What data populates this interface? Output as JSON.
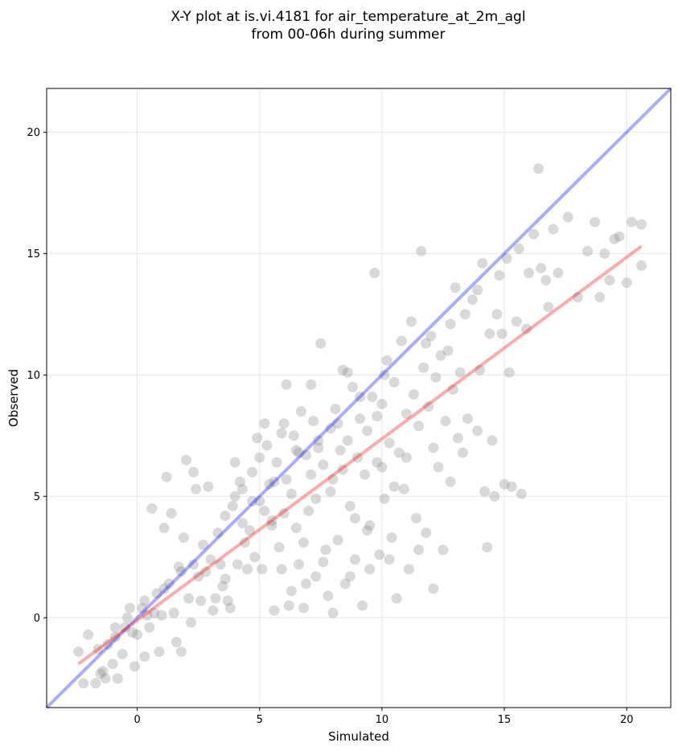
{
  "chart_data": {
    "type": "scatter",
    "title_lines": [
      "X-Y plot at is.vi.4181 for air_temperature_at_2m_agl",
      "from 00-06h during summer"
    ],
    "xlabel": "Simulated",
    "ylabel": "Observed",
    "xlim": [
      -3.7,
      21.8
    ],
    "ylim": [
      -3.7,
      21.8
    ],
    "xticks": [
      0,
      5,
      10,
      15,
      20
    ],
    "yticks": [
      0,
      5,
      10,
      15,
      20
    ],
    "grid": true,
    "colors": {
      "points": "#808080",
      "identity_line": "#0000ff",
      "fit_line": "#ff0000"
    },
    "lines": [
      {
        "kind": "identity",
        "x": [
          -3.7,
          21.8
        ],
        "y": [
          -3.7,
          21.8
        ]
      },
      {
        "kind": "fit",
        "x": [
          -2.4,
          20.6
        ],
        "y": [
          -1.9,
          15.3
        ]
      }
    ],
    "points": [
      [
        -2.4,
        -1.4
      ],
      [
        -2.2,
        -2.7
      ],
      [
        -2.0,
        -0.7
      ],
      [
        -1.7,
        -2.7
      ],
      [
        -1.5,
        -2.3
      ],
      [
        -1.4,
        -2.2
      ],
      [
        -1.3,
        -2.5
      ],
      [
        -1.2,
        -1.1
      ],
      [
        -1.0,
        -1.9
      ],
      [
        -0.9,
        -0.8
      ],
      [
        -0.8,
        -2.5
      ],
      [
        -0.6,
        -1.5
      ],
      [
        -0.5,
        -0.4
      ],
      [
        -0.4,
        0.0
      ],
      [
        -0.3,
        0.4
      ],
      [
        -0.2,
        -0.6
      ],
      [
        -0.1,
        -2.0
      ],
      [
        0.0,
        -0.7
      ],
      [
        0.2,
        0.4
      ],
      [
        0.3,
        -1.6
      ],
      [
        0.4,
        0.1
      ],
      [
        0.5,
        -0.4
      ],
      [
        0.6,
        4.5
      ],
      [
        0.7,
        0.2
      ],
      [
        0.8,
        1.0
      ],
      [
        0.9,
        -1.4
      ],
      [
        1.0,
        0.1
      ],
      [
        1.1,
        3.7
      ],
      [
        1.2,
        5.8
      ],
      [
        1.3,
        1.4
      ],
      [
        1.4,
        4.3
      ],
      [
        1.5,
        0.2
      ],
      [
        1.6,
        -1.0
      ],
      [
        1.7,
        2.1
      ],
      [
        1.8,
        -1.4
      ],
      [
        1.9,
        3.3
      ],
      [
        2.0,
        6.5
      ],
      [
        2.1,
        0.8
      ],
      [
        2.2,
        -0.2
      ],
      [
        2.3,
        6.0
      ],
      [
        2.4,
        5.3
      ],
      [
        2.5,
        1.7
      ],
      [
        2.6,
        0.7
      ],
      [
        2.8,
        1.9
      ],
      [
        2.9,
        5.4
      ],
      [
        3.0,
        2.4
      ],
      [
        3.1,
        0.3
      ],
      [
        3.2,
        0.8
      ],
      [
        3.3,
        3.5
      ],
      [
        3.5,
        1.3
      ],
      [
        3.6,
        1.6
      ],
      [
        3.7,
        0.7
      ],
      [
        3.8,
        0.4
      ],
      [
        3.9,
        4.6
      ],
      [
        4.0,
        6.4
      ],
      [
        4.0,
        5.0
      ],
      [
        4.1,
        2.2
      ],
      [
        4.2,
        5.6
      ],
      [
        4.3,
        5.3
      ],
      [
        4.4,
        3.1
      ],
      [
        4.5,
        2.0
      ],
      [
        4.6,
        3.6
      ],
      [
        4.7,
        6.0
      ],
      [
        4.8,
        2.5
      ],
      [
        4.9,
        7.4
      ],
      [
        5.0,
        4.8
      ],
      [
        5.0,
        6.6
      ],
      [
        5.1,
        2.0
      ],
      [
        5.2,
        4.4
      ],
      [
        5.3,
        7.1
      ],
      [
        5.4,
        5.5
      ],
      [
        5.5,
        3.8
      ],
      [
        5.6,
        0.3
      ],
      [
        5.7,
        6.4
      ],
      [
        5.8,
        2.9
      ],
      [
        5.9,
        7.6
      ],
      [
        6.0,
        8.0
      ],
      [
        6.0,
        4.3
      ],
      [
        6.1,
        9.6
      ],
      [
        6.2,
        0.5
      ],
      [
        6.3,
        5.1
      ],
      [
        6.4,
        7.5
      ],
      [
        6.5,
        3.7
      ],
      [
        6.6,
        2.2
      ],
      [
        6.7,
        8.5
      ],
      [
        6.8,
        0.4
      ],
      [
        6.9,
        6.7
      ],
      [
        7.0,
        4.4
      ],
      [
        7.1,
        5.9
      ],
      [
        7.2,
        8.1
      ],
      [
        7.3,
        1.7
      ],
      [
        7.4,
        7.0
      ],
      [
        7.5,
        11.3
      ],
      [
        7.6,
        6.3
      ],
      [
        7.7,
        2.8
      ],
      [
        7.8,
        0.9
      ],
      [
        7.9,
        7.8
      ],
      [
        8.0,
        5.7
      ],
      [
        8.1,
        8.6
      ],
      [
        8.2,
        3.2
      ],
      [
        8.3,
        6.9
      ],
      [
        8.4,
        10.2
      ],
      [
        8.5,
        1.4
      ],
      [
        8.6,
        7.3
      ],
      [
        8.7,
        4.6
      ],
      [
        8.8,
        9.5
      ],
      [
        8.9,
        2.4
      ],
      [
        9.0,
        6.6
      ],
      [
        9.1,
        8.2
      ],
      [
        9.2,
        0.5
      ],
      [
        9.3,
        5.9
      ],
      [
        9.4,
        7.7
      ],
      [
        9.5,
        3.8
      ],
      [
        9.6,
        9.1
      ],
      [
        9.7,
        14.2
      ],
      [
        9.8,
        6.4
      ],
      [
        9.9,
        2.6
      ],
      [
        10.0,
        8.8
      ],
      [
        10.1,
        4.9
      ],
      [
        10.2,
        10.6
      ],
      [
        10.3,
        7.2
      ],
      [
        10.4,
        3.3
      ],
      [
        10.5,
        9.7
      ],
      [
        10.6,
        0.8
      ],
      [
        10.7,
        6.8
      ],
      [
        10.8,
        11.4
      ],
      [
        10.9,
        5.3
      ],
      [
        11.0,
        8.4
      ],
      [
        11.1,
        2.0
      ],
      [
        11.2,
        12.2
      ],
      [
        11.3,
        9.2
      ],
      [
        11.4,
        4.1
      ],
      [
        11.5,
        7.9
      ],
      [
        11.6,
        15.1
      ],
      [
        11.7,
        10.3
      ],
      [
        11.8,
        3.5
      ],
      [
        11.9,
        8.7
      ],
      [
        12.0,
        11.6
      ],
      [
        12.1,
        1.2
      ],
      [
        12.2,
        9.9
      ],
      [
        12.3,
        6.2
      ],
      [
        12.4,
        10.8
      ],
      [
        12.5,
        2.8
      ],
      [
        12.6,
        8.1
      ],
      [
        12.7,
        11.0
      ],
      [
        12.8,
        5.6
      ],
      [
        12.9,
        9.4
      ],
      [
        13.0,
        13.6
      ],
      [
        13.1,
        7.4
      ],
      [
        13.2,
        10.1
      ],
      [
        13.4,
        12.5
      ],
      [
        13.5,
        8.2
      ],
      [
        13.7,
        13.1
      ],
      [
        13.9,
        7.7
      ],
      [
        14.0,
        10.2
      ],
      [
        14.1,
        14.6
      ],
      [
        14.2,
        5.2
      ],
      [
        14.3,
        2.9
      ],
      [
        14.4,
        11.7
      ],
      [
        14.5,
        7.3
      ],
      [
        14.6,
        5.0
      ],
      [
        14.7,
        12.5
      ],
      [
        14.9,
        11.7
      ],
      [
        15.0,
        5.5
      ],
      [
        15.1,
        14.8
      ],
      [
        15.2,
        10.1
      ],
      [
        15.3,
        5.4
      ],
      [
        15.5,
        12.2
      ],
      [
        15.7,
        5.1
      ],
      [
        15.9,
        11.9
      ],
      [
        16.0,
        14.2
      ],
      [
        16.2,
        15.8
      ],
      [
        16.4,
        18.5
      ],
      [
        16.5,
        14.4
      ],
      [
        16.7,
        13.9
      ],
      [
        16.8,
        12.8
      ],
      [
        17.0,
        16.0
      ],
      [
        17.2,
        14.2
      ],
      [
        17.6,
        16.5
      ],
      [
        18.0,
        13.2
      ],
      [
        18.4,
        15.1
      ],
      [
        18.7,
        16.3
      ],
      [
        18.9,
        13.2
      ],
      [
        19.1,
        15.0
      ],
      [
        19.3,
        13.9
      ],
      [
        19.5,
        15.6
      ],
      [
        19.7,
        15.7
      ],
      [
        20.0,
        13.8
      ],
      [
        20.2,
        16.3
      ],
      [
        20.6,
        16.2
      ],
      [
        20.6,
        14.5
      ],
      [
        3.4,
        2.2
      ],
      [
        5.5,
        4.0
      ],
      [
        6.1,
        5.7
      ],
      [
        6.8,
        3.1
      ],
      [
        7.3,
        4.9
      ],
      [
        7.9,
        5.2
      ],
      [
        8.4,
        6.1
      ],
      [
        8.9,
        4.1
      ],
      [
        9.4,
        3.6
      ],
      [
        10.0,
        6.2
      ],
      [
        10.5,
        5.4
      ],
      [
        11.0,
        6.6
      ],
      [
        12.1,
        7.0
      ],
      [
        13.3,
        6.8
      ],
      [
        5.2,
        8.0
      ],
      [
        6.5,
        6.9
      ],
      [
        7.1,
        9.6
      ],
      [
        8.6,
        10.1
      ],
      [
        9.8,
        8.3
      ],
      [
        4.3,
        3.9
      ],
      [
        5.9,
        2.0
      ],
      [
        6.9,
        1.4
      ],
      [
        7.6,
        2.3
      ],
      [
        8.0,
        0.2
      ],
      [
        8.7,
        1.7
      ],
      [
        9.5,
        2.0
      ],
      [
        10.3,
        2.4
      ],
      [
        11.5,
        2.8
      ],
      [
        6.3,
        1.1
      ],
      [
        2.7,
        3.0
      ],
      [
        3.6,
        4.2
      ],
      [
        4.7,
        4.8
      ],
      [
        5.6,
        5.6
      ],
      [
        6.6,
        6.8
      ],
      [
        7.4,
        7.3
      ],
      [
        8.2,
        8.0
      ],
      [
        9.1,
        9.1
      ],
      [
        10.1,
        10.0
      ],
      [
        1.1,
        1.2
      ],
      [
        0.3,
        0.7
      ],
      [
        -0.9,
        -0.4
      ],
      [
        1.8,
        1.9
      ],
      [
        2.3,
        2.2
      ],
      [
        -1.6,
        -1.3
      ],
      [
        12.8,
        12.1
      ],
      [
        13.9,
        13.5
      ],
      [
        14.8,
        14.1
      ],
      [
        15.6,
        15.2
      ],
      [
        11.8,
        11.3
      ]
    ]
  }
}
